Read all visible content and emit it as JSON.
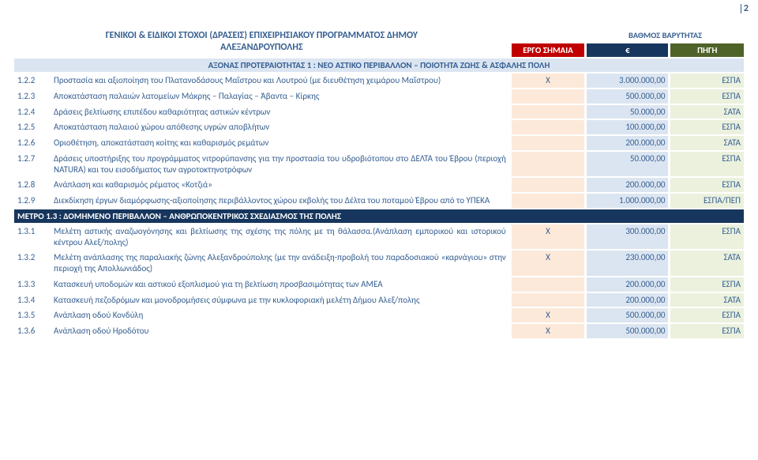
{
  "page_number": "2",
  "header": {
    "title_line1": "ΓΕΝΙΚΟΙ & ΕΙΔΙΚΟΙ ΣΤΟΧΟΙ (ΔΡΑΣΕΙΣ) ΕΠΙΧΕΙΡΗΣΙΑΚΟΥ ΠΡΟΓΡΑΜΜΑΤΟΣ ΔΗΜΟΥ",
    "title_line2": "ΑΛΕΞΑΝΔΡΟΥΠΟΛΗΣ",
    "col_flag": "ΕΡΓΟ ΣΗΜΑΙΑ",
    "severity": "ΒΑΘΜΟΣ ΒΑΡΥΤΗΤΑΣ",
    "col_amount": "€",
    "col_source": "ΠΗΓΗ"
  },
  "axis_title": "ΑΞΟΝΑΣ ΠΡΟΤΕΡΑΙΟΤΗΤΑΣ 1 :  ΝΕΟ ΑΣΤΙΚΟ ΠΕΡΙΒΑΛΛΟΝ – ΠΟΙΟΤΗΤΑ ΖΩΗΣ & ΑΣΦΑΛΗΣ ΠΟΛΗ",
  "rows": [
    {
      "id": "1.2.2",
      "desc": "Προστασία και αξιοποίηση του Πλατανοδάσους Μαΐστρου και Λουτρού (με διευθέτηση χειμάρου Μαΐστρου)",
      "flag": "Χ",
      "amount": "3.000.000,00",
      "src": "ΕΣΠΑ"
    },
    {
      "id": "1.2.3",
      "desc": "Αποκατάσταση παλαιών λατομείων Μάκρης – Παλαγίας – Άβαντα – Κίρκης",
      "flag": "",
      "amount": "500.000,00",
      "src": "ΕΣΠΑ"
    },
    {
      "id": "1.2.4",
      "desc": "Δράσεις βελτίωσης επιπέδου καθαριότητας αστικών κέντρων",
      "flag": "",
      "amount": "50.000,00",
      "src": "ΣΑΤΑ"
    },
    {
      "id": "1.2.5",
      "desc": "Αποκατάσταση παλαιού χώρου απόθεσης υγρών αποβλήτων",
      "flag": "",
      "amount": "100.000,00",
      "src": "ΕΣΠΑ"
    },
    {
      "id": "1.2.6",
      "desc": "Οριοθέτηση, αποκατάσταση κοίτης και καθαρισμός ρεμάτων",
      "flag": "",
      "amount": "200.000,00",
      "src": "ΣΑΤΑ"
    },
    {
      "id": "1.2.7",
      "desc": "Δράσεις υποστήριξης του προγράμματος νιτρορύπανσης για την προστασία του υδροβιότοπου στο ΔΕΛΤΑ του Έβρου (περιοχή NATURA) και του εισοδήματος των αγροτοκτηνοτρόφων",
      "flag": "",
      "amount": "50.000,00",
      "src": "ΕΣΠΑ"
    },
    {
      "id": "1.2.8",
      "desc": "Ανάπλαση και καθαρισμός ρέματος «Κοτζιά»",
      "flag": "",
      "amount": "200.000,00",
      "src": "ΕΣΠΑ"
    },
    {
      "id": "1.2.9",
      "desc": "Διεκδίκηση έργων διαμόρφωσης-αξιοποίησης περιβάλλοντος χώρου εκβολής του Δέλτα του ποταμού Έβρου από το ΥΠΕΚΑ",
      "flag": "",
      "amount": "1.000.000,00",
      "src": "ΕΣΠΑ/ΠΕΠ"
    }
  ],
  "metro_title": "ΜΕΤΡΟ 1.3 : ΔΟΜΗΜΕΝΟ ΠΕΡΙΒΑΛΛΟΝ – ΑΝΘΡΩΠΟΚΕΝΤΡΙΚΟΣ ΣΧΕΔΙΑΣΜΟΣ ΤΗΣ ΠΟΛΗΣ",
  "rows2": [
    {
      "id": "1.3.1",
      "desc": "Μελέτη αστικής αναζωογόνησης και βελτίωσης της σχέσης της πόλης με τη θάλασσα.(Ανάπλαση εμπορικού και ιστορικού κέντρου Αλεξ/πολης)",
      "flag": "Χ",
      "amount": "300.000,00",
      "src": "ΕΣΠΑ"
    },
    {
      "id": "1.3.2",
      "desc": "Μελέτη ανάπλασης της παραλιακής ζώνης Αλεξανδρούπολης (με την ανάδειξη-προβολή του παραδοσιακού «καρνάγιου» στην περιοχή της Απολλωνιάδος)",
      "flag": "Χ",
      "amount": "230.000,00",
      "src": "ΣΑΤΑ"
    },
    {
      "id": "1.3.3",
      "desc": "Κατασκευή υποδομών και αστικού εξοπλισμού για τη βελτίωση προσβασιμότητας των ΑΜΕΑ",
      "flag": "",
      "amount": "200.000,00",
      "src": "ΕΣΠΑ"
    },
    {
      "id": "1.3.4",
      "desc": "Κατασκευή πεζοδρόμων και μονοδρομήσεις  σύμφωνα  με την κυκλοφοριακή μελέτη Δήμου Αλεξ/πολης",
      "flag": "",
      "amount": "200.000,00",
      "src": "ΣΑΤΑ"
    },
    {
      "id": "1.3.5",
      "desc": "Ανάπλαση οδού Κονδύλη",
      "flag": "Χ",
      "amount": "500.000,00",
      "src": "ΕΣΠΑ"
    },
    {
      "id": "1.3.6",
      "desc": "Ανάπλαση οδού Ηροδότου",
      "flag": "Χ",
      "amount": "500.000,00",
      "src": "ΕΣΠΑ"
    }
  ],
  "colors": {
    "text": "#365f91",
    "red": "#c00000",
    "darkblue": "#17365d",
    "olive": "#4f6228",
    "flag_bg": "#fde9d9",
    "amt_bg": "#dbe5f1",
    "src_bg": "#ebf1dd",
    "axis_bg": "#dbe5f1"
  }
}
